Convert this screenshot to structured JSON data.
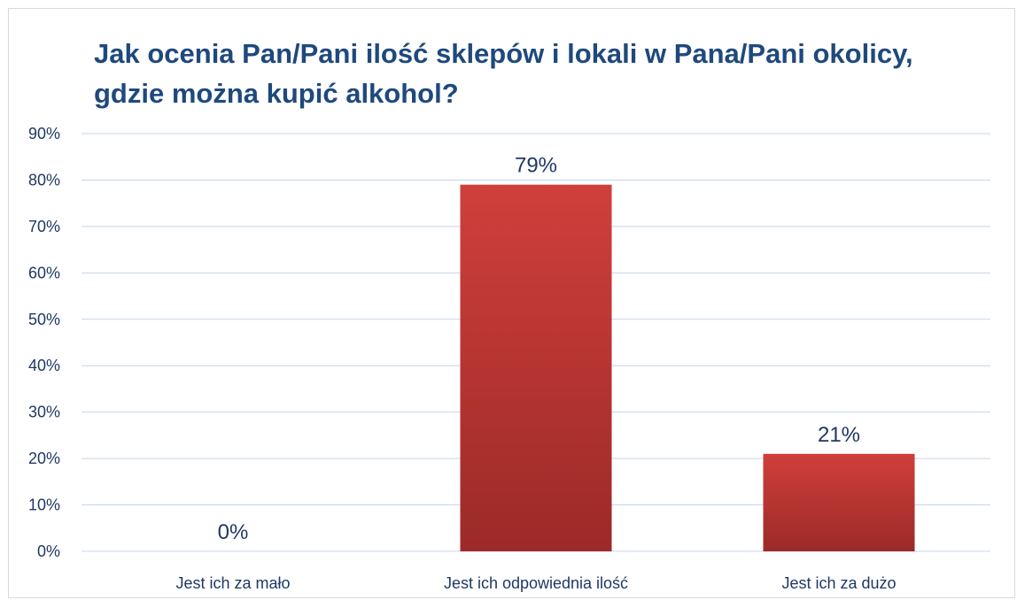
{
  "chart_data": {
    "type": "bar",
    "title": "Jak ocenia Pan/Pani ilość sklepów i lokali w Pana/Pani okolicy, gdzie można kupić alkohol?",
    "categories": [
      "Jest ich za mało",
      "Jest ich odpowiednia ilość",
      "Jest ich za dużo"
    ],
    "values": [
      0,
      79,
      21
    ],
    "data_labels": [
      "0%",
      "79%",
      "21%"
    ],
    "ylim": [
      0,
      90
    ],
    "yticks": [
      0,
      10,
      20,
      30,
      40,
      50,
      60,
      70,
      80,
      90
    ],
    "ytick_labels": [
      "0%",
      "10%",
      "20%",
      "30%",
      "40%",
      "50%",
      "60%",
      "70%",
      "80%",
      "90%"
    ],
    "xlabel": "",
    "ylabel": "",
    "grid": true,
    "legend": "none",
    "colors": {
      "bar_top": "#d03f3b",
      "bar_bottom": "#9b2a28",
      "gridline": "#c6d4ea",
      "title": "#1f497d",
      "text": "#1f3864"
    }
  }
}
